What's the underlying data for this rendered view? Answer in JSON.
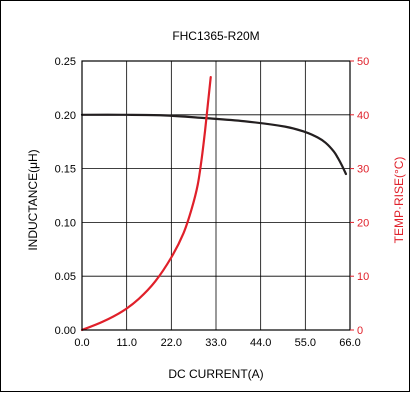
{
  "chart_data": {
    "type": "line",
    "title": "FHC1365-R20M",
    "xlabel": "DC CURRENT(A)",
    "ylabel_left": "INDUCTANCE(μH)",
    "ylabel_right": "TEMP·RISE(°C)",
    "xlim": [
      0,
      66
    ],
    "ylim_left": [
      0,
      0.25
    ],
    "ylim_right": [
      0,
      50
    ],
    "x_ticks": [
      "0.0",
      "11.0",
      "22.0",
      "33.0",
      "44.0",
      "55.0",
      "66.0"
    ],
    "y_left_ticks": [
      "0.00",
      "0.05",
      "0.10",
      "0.15",
      "0.20",
      "0.25"
    ],
    "y_right_ticks": [
      "0",
      "10",
      "20",
      "30",
      "40",
      "50"
    ],
    "grid": true,
    "colors": {
      "inductance": "#231f20",
      "temp_rise": "#e0202a",
      "frame": "#000000"
    },
    "series": [
      {
        "axis": "left",
        "values_xy": [
          [
            0,
            0.2
          ],
          [
            10,
            0.2
          ],
          [
            20,
            0.1995
          ],
          [
            30,
            0.197
          ],
          [
            40,
            0.194
          ],
          [
            50,
            0.189
          ],
          [
            55,
            0.184
          ],
          [
            58,
            0.179
          ],
          [
            60,
            0.174
          ],
          [
            62,
            0.166
          ],
          [
            63,
            0.16
          ],
          [
            64,
            0.153
          ],
          [
            65,
            0.145
          ]
        ]
      },
      {
        "axis": "right",
        "values_xy": [
          [
            0,
            0
          ],
          [
            5,
            1.5
          ],
          [
            10,
            3.5
          ],
          [
            14,
            5.8
          ],
          [
            18,
            9
          ],
          [
            22,
            13.5
          ],
          [
            25,
            18
          ],
          [
            27,
            22.5
          ],
          [
            28.5,
            27
          ],
          [
            29.5,
            32
          ],
          [
            30.3,
            37
          ],
          [
            31,
            42
          ],
          [
            31.7,
            47
          ]
        ]
      }
    ]
  }
}
